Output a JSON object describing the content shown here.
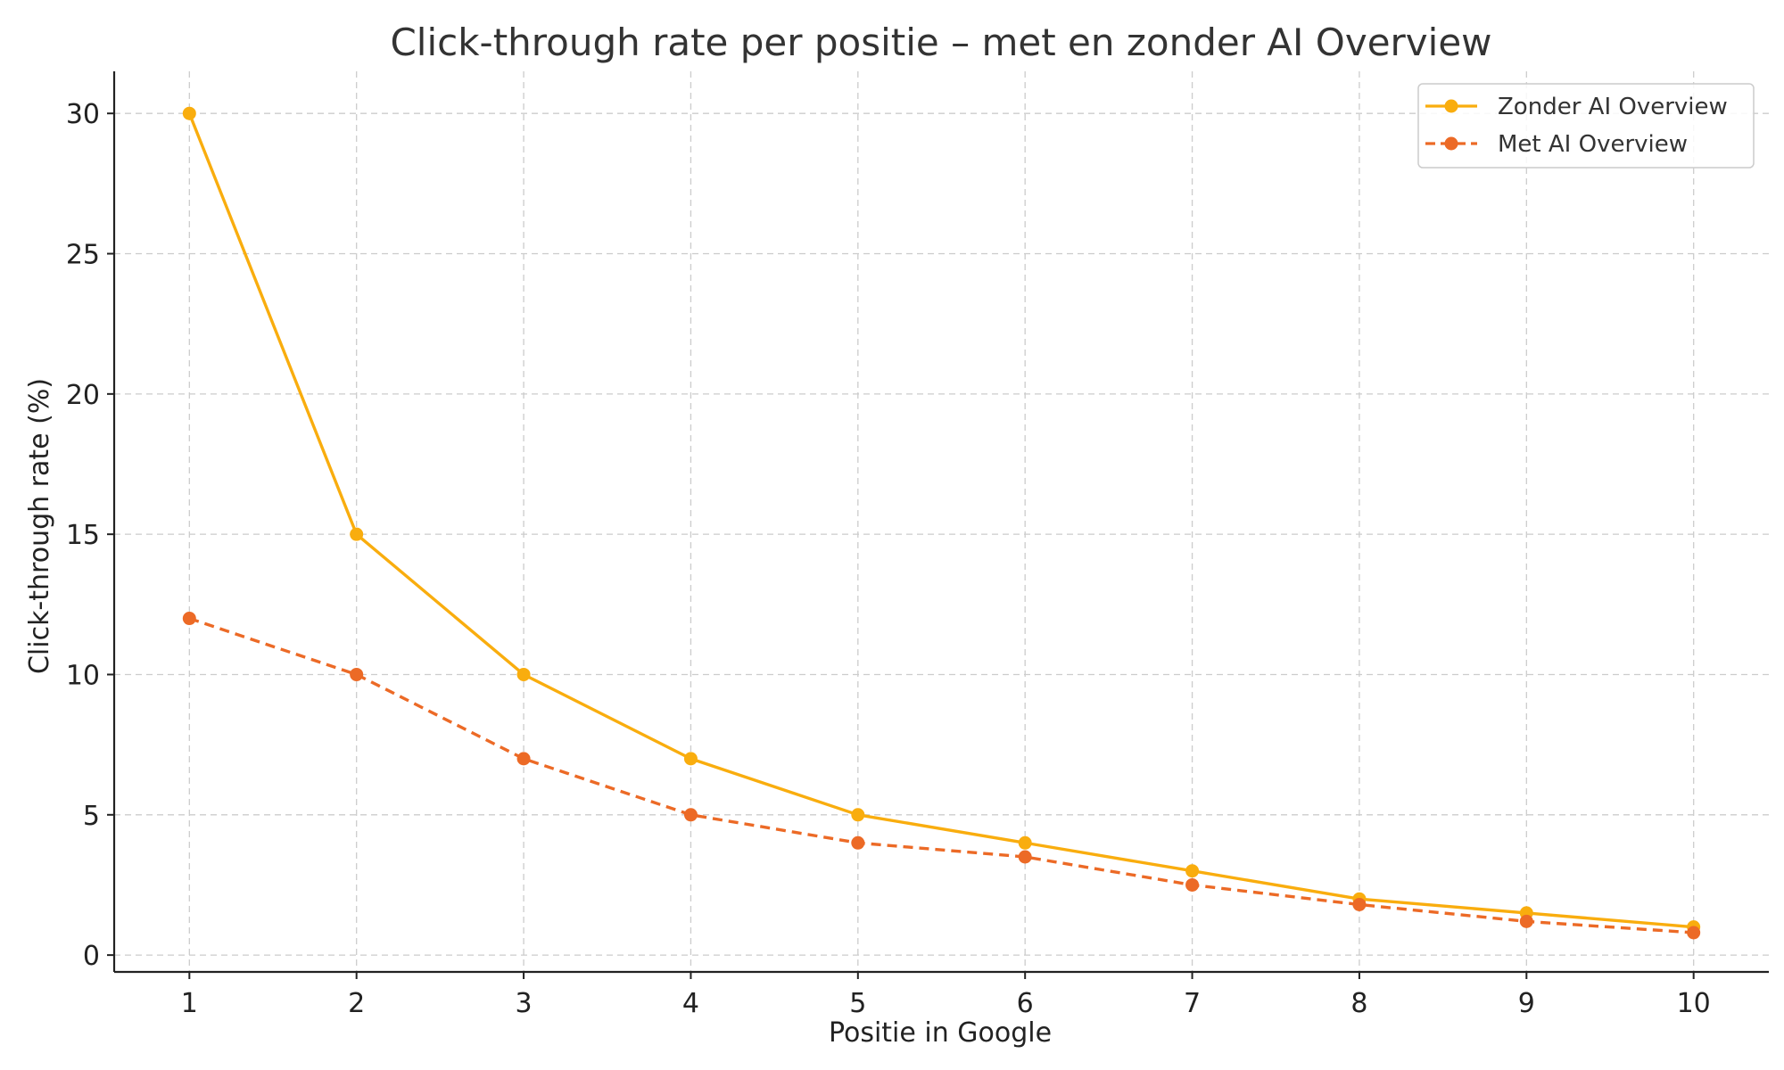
{
  "chart_data": {
    "type": "line",
    "title": "Click-through rate per positie – met en zonder AI Overview",
    "xlabel": "Positie in Google",
    "ylabel": "Click-through rate (%)",
    "x": [
      1,
      2,
      3,
      4,
      5,
      6,
      7,
      8,
      9,
      10
    ],
    "x_ticks": [
      1,
      2,
      3,
      4,
      5,
      6,
      7,
      8,
      9,
      10
    ],
    "y_ticks": [
      0,
      5,
      10,
      15,
      20,
      25,
      30
    ],
    "xlim": [
      0.55,
      10.45
    ],
    "ylim": [
      -0.6,
      31.5
    ],
    "grid": true,
    "legend_position": "top-right",
    "series": [
      {
        "name": "Zonder AI Overview",
        "values": [
          30,
          15,
          10,
          7,
          5,
          4,
          3,
          2,
          1.5,
          1
        ],
        "color": "#f9ad0e",
        "line_style": "solid",
        "marker": "circle"
      },
      {
        "name": "Met AI Overview",
        "values": [
          12,
          10,
          7,
          5,
          4,
          3.5,
          2.5,
          1.8,
          1.2,
          0.8
        ],
        "color": "#ec6a26",
        "line_style": "dashed",
        "marker": "circle"
      }
    ]
  }
}
